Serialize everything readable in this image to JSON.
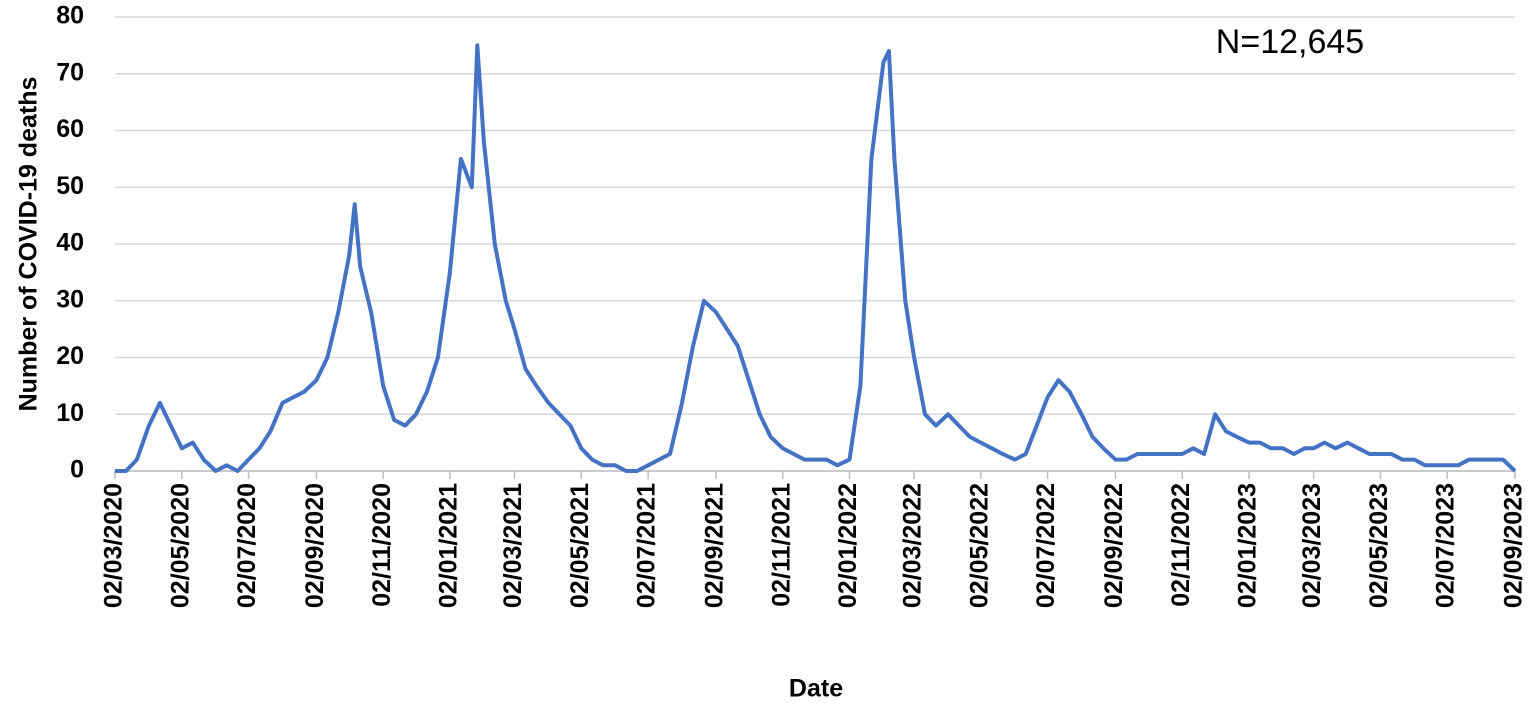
{
  "chart_data": {
    "type": "line",
    "x_label": "Date",
    "y_label": "Number of COVID-19 deaths",
    "annotation": "N=12,645",
    "x": [
      "02/03/2020",
      "12/03/2020",
      "22/03/2020",
      "02/04/2020",
      "12/04/2020",
      "22/04/2020",
      "02/05/2020",
      "12/05/2020",
      "22/05/2020",
      "02/06/2020",
      "12/06/2020",
      "22/06/2020",
      "02/07/2020",
      "12/07/2020",
      "22/07/2020",
      "02/08/2020",
      "12/08/2020",
      "22/08/2020",
      "02/09/2020",
      "12/09/2020",
      "22/09/2020",
      "02/10/2020",
      "07/10/2020",
      "12/10/2020",
      "22/10/2020",
      "02/11/2020",
      "12/11/2020",
      "22/11/2020",
      "02/12/2020",
      "12/12/2020",
      "22/12/2020",
      "02/01/2021",
      "12/01/2021",
      "22/01/2021",
      "27/01/2021",
      "02/02/2021",
      "12/02/2021",
      "22/02/2021",
      "02/03/2021",
      "12/03/2021",
      "22/03/2021",
      "02/04/2021",
      "12/04/2021",
      "22/04/2021",
      "02/05/2021",
      "12/05/2021",
      "22/05/2021",
      "02/06/2021",
      "12/06/2021",
      "22/06/2021",
      "02/07/2021",
      "12/07/2021",
      "22/07/2021",
      "02/08/2021",
      "12/08/2021",
      "22/08/2021",
      "02/09/2021",
      "12/09/2021",
      "22/09/2021",
      "02/10/2021",
      "12/10/2021",
      "22/10/2021",
      "02/11/2021",
      "12/11/2021",
      "22/11/2021",
      "02/12/2021",
      "12/12/2021",
      "22/12/2021",
      "02/01/2022",
      "12/01/2022",
      "22/01/2022",
      "02/02/2022",
      "07/02/2022",
      "12/02/2022",
      "22/02/2022",
      "02/03/2022",
      "12/03/2022",
      "22/03/2022",
      "02/04/2022",
      "12/04/2022",
      "22/04/2022",
      "02/05/2022",
      "12/05/2022",
      "22/05/2022",
      "02/06/2022",
      "12/06/2022",
      "22/06/2022",
      "02/07/2022",
      "12/07/2022",
      "22/07/2022",
      "02/08/2022",
      "12/08/2022",
      "22/08/2022",
      "02/09/2022",
      "12/09/2022",
      "22/09/2022",
      "02/10/2022",
      "12/10/2022",
      "22/10/2022",
      "02/11/2022",
      "12/11/2022",
      "22/11/2022",
      "02/12/2022",
      "12/12/2022",
      "22/12/2022",
      "02/01/2023",
      "12/01/2023",
      "22/01/2023",
      "02/02/2023",
      "12/02/2023",
      "22/02/2023",
      "02/03/2023",
      "12/03/2023",
      "22/03/2023",
      "02/04/2023",
      "12/04/2023",
      "22/04/2023",
      "02/05/2023",
      "12/05/2023",
      "22/05/2023",
      "02/06/2023",
      "12/06/2023",
      "22/06/2023",
      "02/07/2023",
      "12/07/2023",
      "22/07/2023",
      "02/08/2023",
      "12/08/2023",
      "22/08/2023",
      "02/09/2023"
    ],
    "series": [
      {
        "name": "COVID-19 deaths",
        "color": "#4472c4",
        "values": [
          0,
          0,
          2,
          8,
          12,
          8,
          4,
          5,
          2,
          0,
          1,
          0,
          2,
          4,
          7,
          12,
          13,
          14,
          16,
          20,
          28,
          38,
          47,
          36,
          28,
          15,
          9,
          8,
          10,
          14,
          20,
          35,
          55,
          50,
          75,
          58,
          40,
          30,
          25,
          18,
          15,
          12,
          10,
          8,
          4,
          2,
          1,
          1,
          0,
          0,
          1,
          2,
          3,
          12,
          22,
          30,
          28,
          25,
          22,
          16,
          10,
          6,
          4,
          3,
          2,
          2,
          2,
          1,
          2,
          15,
          55,
          72,
          74,
          55,
          30,
          20,
          10,
          8,
          10,
          8,
          6,
          5,
          4,
          3,
          2,
          3,
          8,
          13,
          16,
          14,
          10,
          6,
          4,
          2,
          2,
          3,
          3,
          3,
          3,
          3,
          4,
          3,
          10,
          7,
          6,
          5,
          5,
          4,
          4,
          3,
          4,
          4,
          5,
          4,
          5,
          4,
          3,
          3,
          3,
          2,
          2,
          1,
          1,
          1,
          1,
          2,
          2,
          2,
          2,
          0
        ]
      }
    ],
    "xlim": [
      "02/03/2020",
      "02/09/2023"
    ],
    "xticks": [
      "02/03/2020",
      "02/05/2020",
      "02/07/2020",
      "02/09/2020",
      "02/11/2020",
      "02/01/2021",
      "02/03/2021",
      "02/05/2021",
      "02/07/2021",
      "02/09/2021",
      "02/11/2021",
      "02/01/2022",
      "02/03/2022",
      "02/05/2022",
      "02/07/2022",
      "02/09/2022",
      "02/11/2022",
      "02/01/2023",
      "02/03/2023",
      "02/05/2023",
      "02/07/2023",
      "02/09/2023"
    ],
    "ylim": [
      0,
      80
    ],
    "yticks": [
      0,
      10,
      20,
      30,
      40,
      50,
      60,
      70,
      80
    ],
    "grid": true
  }
}
